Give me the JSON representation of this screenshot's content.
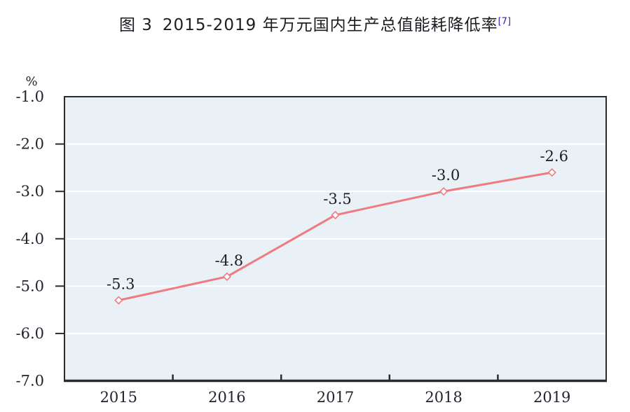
{
  "title": {
    "figure_label": "图 3",
    "text": "2015-2019 年万元国内生产总值能耗降低率",
    "superscript": "[7]"
  },
  "chart_data": {
    "type": "line",
    "categories": [
      "2015",
      "2016",
      "2017",
      "2018",
      "2019"
    ],
    "series": [
      {
        "name": "万元国内生产总值能耗降低率",
        "values": [
          -5.3,
          -4.8,
          -3.5,
          -3.0,
          -2.6
        ]
      }
    ],
    "data_labels": [
      "-5.3",
      "-4.8",
      "-3.5",
      "-3.0",
      "-2.6"
    ],
    "unit": "%",
    "ylabel": "%",
    "xlabel": "",
    "ylim": [
      -7.0,
      -1.0
    ],
    "ytick_labels": [
      "-1.0",
      "-2.0",
      "-3.0",
      "-4.0",
      "-5.0",
      "-6.0",
      "-7.0"
    ],
    "ytick_values": [
      -1.0,
      -2.0,
      -3.0,
      -4.0,
      -5.0,
      -6.0,
      -7.0
    ],
    "grid": true,
    "legend": "none",
    "marker": "open-diamond",
    "colors": {
      "line": "#ef7a80",
      "marker_fill": "#ffffff",
      "plot_background": "#e9f1f6",
      "gridline": "#ffffff",
      "axis": "#2b2b2b",
      "text": "#23232d",
      "title_text": "#1c1c22",
      "superscript": "#2323c8"
    }
  }
}
